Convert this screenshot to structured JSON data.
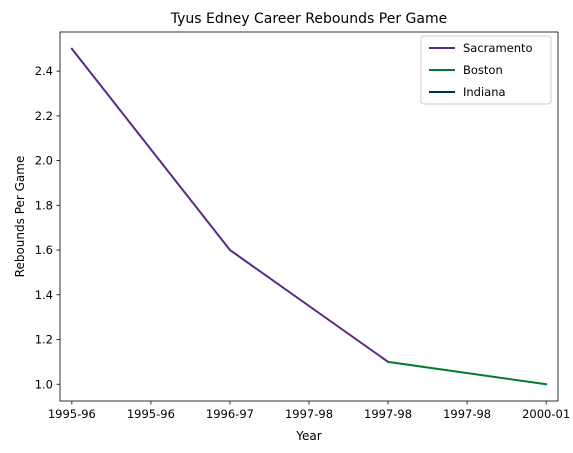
{
  "chart_data": {
    "type": "line",
    "title": "Tyus Edney Career Rebounds Per Game",
    "xlabel": "Year",
    "ylabel": "Rebounds Per Game",
    "x_ticks": [
      "1995-96",
      "1995-96",
      "1996-97",
      "1997-98",
      "1997-98",
      "1997-98",
      "2000-01"
    ],
    "x_range": [
      -0.15,
      6.15
    ],
    "y_ticks": [
      "1.0",
      "1.2",
      "1.4",
      "1.6",
      "1.8",
      "2.0",
      "2.2",
      "2.4"
    ],
    "y_tick_values": [
      1.0,
      1.2,
      1.4,
      1.6,
      1.8,
      2.0,
      2.2,
      2.4
    ],
    "ylim": [
      0.925,
      2.575
    ],
    "grid": false,
    "legend_position": "top-right",
    "series": [
      {
        "name": "Sacramento",
        "color": "#5b2a86",
        "points": [
          {
            "x": "1995-96",
            "y": 2.5
          },
          {
            "x": "1996-97",
            "y": 1.6
          },
          {
            "x": "1997-98",
            "y": 1.1
          }
        ]
      },
      {
        "name": "Boston",
        "color": "#007a33",
        "points": [
          {
            "x": "1997-98",
            "y": 1.1
          },
          {
            "x": "2000-01",
            "y": 1.0
          }
        ]
      },
      {
        "name": "Indiana",
        "color": "#002d62",
        "points": []
      }
    ]
  }
}
